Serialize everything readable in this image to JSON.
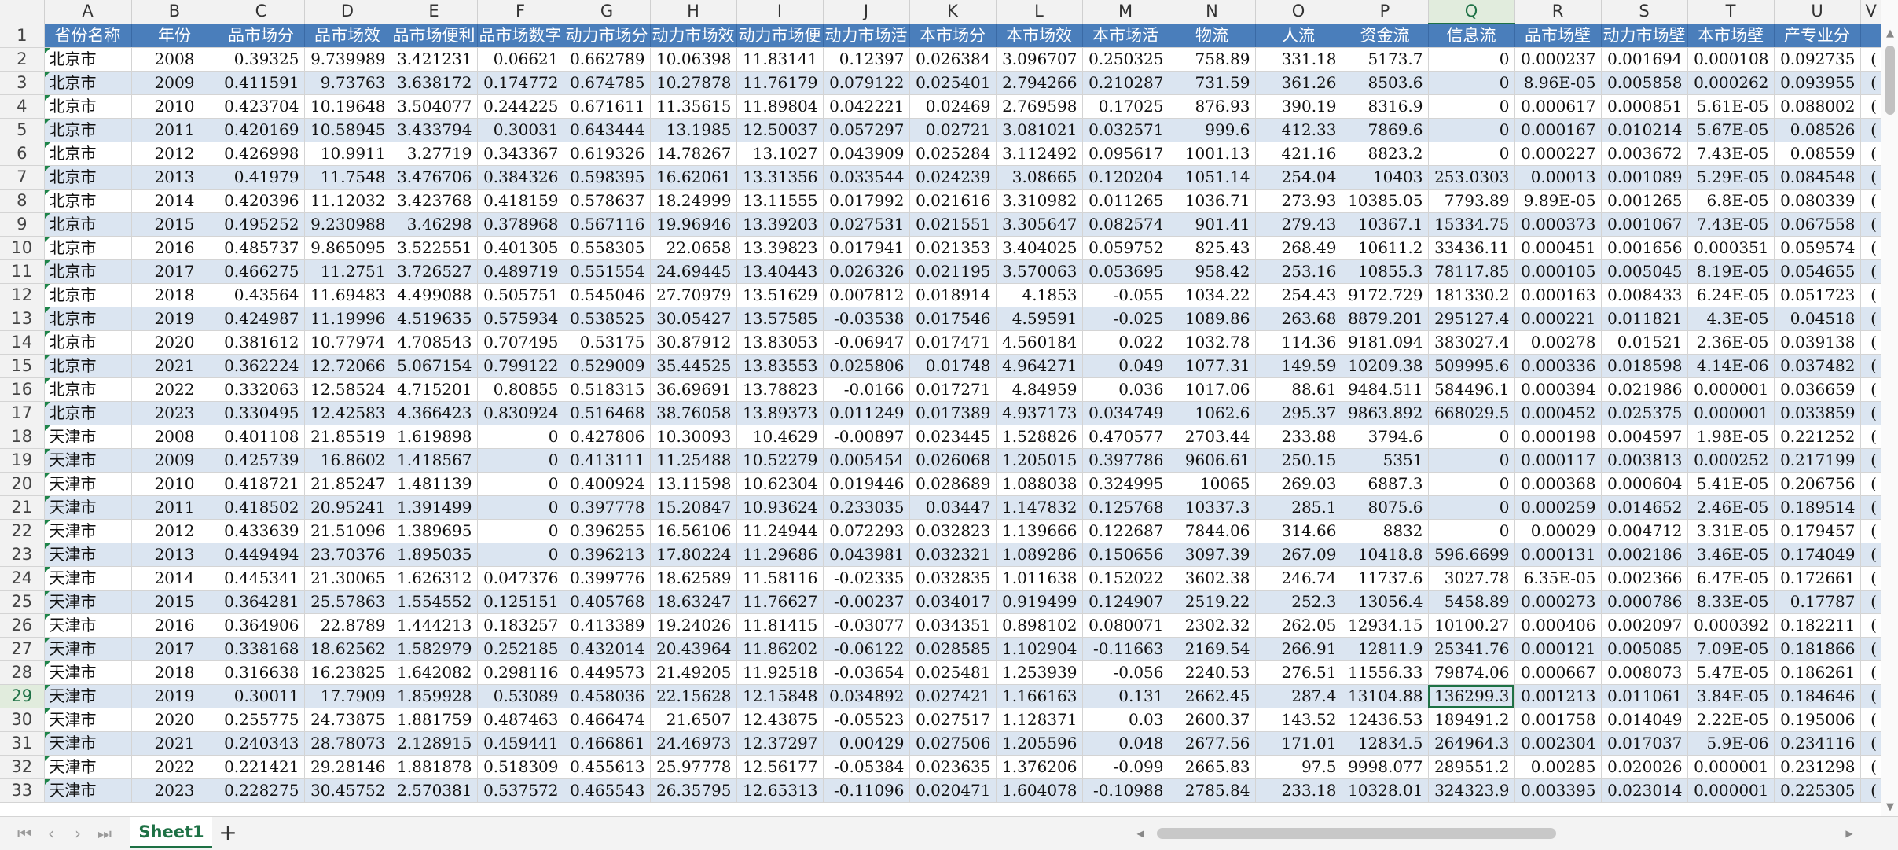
{
  "columns": [
    "A",
    "B",
    "C",
    "D",
    "E",
    "F",
    "G",
    "H",
    "I",
    "J",
    "K",
    "L",
    "M",
    "N",
    "O",
    "P",
    "Q",
    "R",
    "S",
    "T",
    "U",
    "V"
  ],
  "headers": [
    "省份名称",
    "年份",
    "品市场分",
    "品市场效",
    "品市场便利",
    "品市场数字",
    "动力市场分",
    "动力市场效",
    "动力市场便",
    "动力市场活",
    "本市场分",
    "本市场效",
    "本市场活",
    "物流",
    "人流",
    "资金流",
    "信息流",
    "品市场壁",
    "动力市场壁",
    "本市场壁",
    "产专业分",
    ""
  ],
  "sheet_tab": "Sheet1",
  "add_sheet": "+",
  "icons": {
    "first": "⏮",
    "prev": "‹",
    "next": "›",
    "last": "⏭",
    "scroll_up": "▲",
    "scroll_down": "▼",
    "scroll_left": "◀",
    "scroll_right": "▶"
  },
  "selected_cell": "Q29",
  "rows": [
    {
      "n": "2",
      "c": [
        "北京市",
        "2008",
        "0.39325",
        "9.739989",
        "3.421231",
        "0.06621",
        "0.662789",
        "10.06398",
        "11.83141",
        "0.12397",
        "0.026384",
        "3.096707",
        "0.250325",
        "758.89",
        "331.18",
        "5173.7",
        "0",
        "0.000237",
        "0.001694",
        "0.000108",
        "0.092735",
        "("
      ]
    },
    {
      "n": "3",
      "c": [
        "北京市",
        "2009",
        "0.411591",
        "9.73763",
        "3.638172",
        "0.174772",
        "0.674785",
        "10.27878",
        "11.76179",
        "0.079122",
        "0.025401",
        "2.794266",
        "0.210287",
        "731.59",
        "361.26",
        "8503.6",
        "0",
        "8.96E-05",
        "0.005858",
        "0.000262",
        "0.093955",
        "("
      ]
    },
    {
      "n": "4",
      "c": [
        "北京市",
        "2010",
        "0.423704",
        "10.19648",
        "3.504077",
        "0.244225",
        "0.671611",
        "11.35615",
        "11.89804",
        "0.042221",
        "0.02469",
        "2.769598",
        "0.17025",
        "876.93",
        "390.19",
        "8316.9",
        "0",
        "0.000617",
        "0.000851",
        "5.61E-05",
        "0.088002",
        "("
      ]
    },
    {
      "n": "5",
      "c": [
        "北京市",
        "2011",
        "0.420169",
        "10.58945",
        "3.433794",
        "0.30031",
        "0.643444",
        "13.1985",
        "12.50037",
        "0.057297",
        "0.02721",
        "3.081021",
        "0.032571",
        "999.6",
        "412.33",
        "7869.6",
        "0",
        "0.000167",
        "0.010214",
        "5.67E-05",
        "0.08526",
        "("
      ]
    },
    {
      "n": "6",
      "c": [
        "北京市",
        "2012",
        "0.426998",
        "10.9911",
        "3.27719",
        "0.343367",
        "0.619326",
        "14.78267",
        "13.1027",
        "0.043909",
        "0.025284",
        "3.112492",
        "0.095617",
        "1001.13",
        "421.16",
        "8823.2",
        "0",
        "0.000227",
        "0.003672",
        "7.43E-05",
        "0.08559",
        "("
      ]
    },
    {
      "n": "7",
      "c": [
        "北京市",
        "2013",
        "0.41979",
        "11.7548",
        "3.476706",
        "0.384326",
        "0.598395",
        "16.62061",
        "13.31356",
        "0.033544",
        "0.024239",
        "3.08665",
        "0.120204",
        "1051.14",
        "254.04",
        "10403",
        "253.0303",
        "0.00013",
        "0.001089",
        "5.29E-05",
        "0.084548",
        "("
      ]
    },
    {
      "n": "8",
      "c": [
        "北京市",
        "2014",
        "0.420396",
        "11.12032",
        "3.423768",
        "0.418159",
        "0.578637",
        "18.24999",
        "13.11555",
        "0.017992",
        "0.021616",
        "3.310982",
        "0.011265",
        "1036.71",
        "273.93",
        "10385.05",
        "7793.89",
        "9.89E-05",
        "0.001265",
        "6.8E-05",
        "0.080339",
        "("
      ]
    },
    {
      "n": "9",
      "c": [
        "北京市",
        "2015",
        "0.495252",
        "9.230988",
        "3.46298",
        "0.378968",
        "0.567116",
        "19.96946",
        "13.39203",
        "0.027531",
        "0.021551",
        "3.305647",
        "0.082574",
        "901.41",
        "279.43",
        "10367.1",
        "15334.75",
        "0.000373",
        "0.001067",
        "7.43E-05",
        "0.067558",
        "("
      ]
    },
    {
      "n": "10",
      "c": [
        "北京市",
        "2016",
        "0.485737",
        "9.865095",
        "3.522551",
        "0.401305",
        "0.558305",
        "22.0658",
        "13.39823",
        "0.017941",
        "0.021353",
        "3.404025",
        "0.059752",
        "825.43",
        "268.49",
        "10611.2",
        "33436.11",
        "0.000451",
        "0.001656",
        "0.000351",
        "0.059574",
        "("
      ]
    },
    {
      "n": "11",
      "c": [
        "北京市",
        "2017",
        "0.466275",
        "11.2751",
        "3.726527",
        "0.489719",
        "0.551554",
        "24.69445",
        "13.40443",
        "0.026326",
        "0.021195",
        "3.570063",
        "0.053695",
        "958.42",
        "253.16",
        "10855.3",
        "78117.85",
        "0.000105",
        "0.005045",
        "8.19E-05",
        "0.054655",
        "("
      ]
    },
    {
      "n": "12",
      "c": [
        "北京市",
        "2018",
        "0.43564",
        "11.69483",
        "4.499088",
        "0.505751",
        "0.545046",
        "27.70979",
        "13.51629",
        "0.007812",
        "0.018914",
        "4.1853",
        "-0.055",
        "1034.22",
        "254.43",
        "9172.729",
        "181330.2",
        "0.000163",
        "0.008433",
        "6.24E-05",
        "0.051723",
        "("
      ]
    },
    {
      "n": "13",
      "c": [
        "北京市",
        "2019",
        "0.424987",
        "11.19996",
        "4.519635",
        "0.575934",
        "0.538525",
        "30.05427",
        "13.57585",
        "-0.03538",
        "0.017546",
        "4.59591",
        "-0.025",
        "1089.86",
        "263.68",
        "8879.201",
        "295127.4",
        "0.000221",
        "0.011821",
        "4.3E-05",
        "0.04518",
        "("
      ]
    },
    {
      "n": "14",
      "c": [
        "北京市",
        "2020",
        "0.381612",
        "10.77974",
        "4.708543",
        "0.707495",
        "0.53175",
        "30.87912",
        "13.83053",
        "-0.06947",
        "0.017471",
        "4.560184",
        "0.022",
        "1032.78",
        "114.36",
        "9181.094",
        "383027.4",
        "0.00278",
        "0.01521",
        "2.36E-05",
        "0.039138",
        "("
      ]
    },
    {
      "n": "15",
      "c": [
        "北京市",
        "2021",
        "0.362224",
        "12.72066",
        "5.067154",
        "0.799122",
        "0.529009",
        "35.44525",
        "13.83553",
        "0.025806",
        "0.01748",
        "4.964271",
        "0.049",
        "1077.31",
        "149.59",
        "10209.38",
        "509995.6",
        "0.000336",
        "0.018598",
        "4.14E-06",
        "0.037482",
        "("
      ]
    },
    {
      "n": "16",
      "c": [
        "北京市",
        "2022",
        "0.332063",
        "12.58524",
        "4.715201",
        "0.80855",
        "0.518315",
        "36.69691",
        "13.78823",
        "-0.0166",
        "0.017271",
        "4.84959",
        "0.036",
        "1017.06",
        "88.61",
        "9484.511",
        "584496.1",
        "0.000394",
        "0.021986",
        "0.000001",
        "0.036659",
        "("
      ]
    },
    {
      "n": "17",
      "c": [
        "北京市",
        "2023",
        "0.330495",
        "12.42583",
        "4.366423",
        "0.830924",
        "0.516468",
        "38.76058",
        "13.89373",
        "0.011249",
        "0.017389",
        "4.937173",
        "0.034749",
        "1062.6",
        "295.37",
        "9863.892",
        "668029.5",
        "0.000452",
        "0.025375",
        "0.000001",
        "0.033859",
        "("
      ]
    },
    {
      "n": "18",
      "c": [
        "天津市",
        "2008",
        "0.401108",
        "21.85519",
        "1.619898",
        "0",
        "0.427806",
        "10.30093",
        "10.4629",
        "-0.00897",
        "0.023445",
        "1.528826",
        "0.470577",
        "2703.44",
        "233.88",
        "3794.6",
        "0",
        "0.000198",
        "0.004597",
        "1.98E-05",
        "0.221252",
        "("
      ]
    },
    {
      "n": "19",
      "c": [
        "天津市",
        "2009",
        "0.425739",
        "16.8602",
        "1.418567",
        "0",
        "0.413111",
        "11.25488",
        "10.52279",
        "0.005454",
        "0.026068",
        "1.205015",
        "0.397786",
        "9606.61",
        "250.15",
        "5351",
        "0",
        "0.000117",
        "0.003813",
        "0.000252",
        "0.217199",
        "("
      ]
    },
    {
      "n": "20",
      "c": [
        "天津市",
        "2010",
        "0.418721",
        "21.85247",
        "1.481139",
        "0",
        "0.400924",
        "13.11598",
        "10.62304",
        "0.019446",
        "0.028689",
        "1.088038",
        "0.324995",
        "10065",
        "269.03",
        "6887.3",
        "0",
        "0.000368",
        "0.000604",
        "5.41E-05",
        "0.206756",
        "("
      ]
    },
    {
      "n": "21",
      "c": [
        "天津市",
        "2011",
        "0.418502",
        "20.95241",
        "1.391499",
        "0",
        "0.397778",
        "15.20847",
        "10.93624",
        "0.233035",
        "0.03447",
        "1.147832",
        "0.125768",
        "10337.3",
        "285.1",
        "8075.6",
        "0",
        "0.000259",
        "0.014652",
        "2.46E-05",
        "0.189514",
        "("
      ]
    },
    {
      "n": "22",
      "c": [
        "天津市",
        "2012",
        "0.433639",
        "21.51096",
        "1.389695",
        "0",
        "0.396255",
        "16.56106",
        "11.24944",
        "0.072293",
        "0.032823",
        "1.139666",
        "0.122687",
        "7844.06",
        "314.66",
        "8832",
        "0",
        "0.00029",
        "0.004712",
        "3.31E-05",
        "0.179457",
        "("
      ]
    },
    {
      "n": "23",
      "c": [
        "天津市",
        "2013",
        "0.449494",
        "23.70376",
        "1.895035",
        "0",
        "0.396213",
        "17.80224",
        "11.29686",
        "0.043981",
        "0.032321",
        "1.089286",
        "0.150656",
        "3097.39",
        "267.09",
        "10418.8",
        "596.6699",
        "0.000131",
        "0.002186",
        "3.46E-05",
        "0.174049",
        "("
      ]
    },
    {
      "n": "24",
      "c": [
        "天津市",
        "2014",
        "0.445341",
        "21.30065",
        "1.626312",
        "0.047376",
        "0.399776",
        "18.62589",
        "11.58116",
        "-0.02335",
        "0.032835",
        "1.011638",
        "0.152022",
        "3602.38",
        "246.74",
        "11737.6",
        "3027.78",
        "6.35E-05",
        "0.002366",
        "6.47E-05",
        "0.172661",
        "("
      ]
    },
    {
      "n": "25",
      "c": [
        "天津市",
        "2015",
        "0.364281",
        "25.57863",
        "1.554552",
        "0.125151",
        "0.405768",
        "18.63247",
        "11.76627",
        "-0.00237",
        "0.034017",
        "0.919499",
        "0.124907",
        "2519.22",
        "252.3",
        "13056.4",
        "5458.89",
        "0.000273",
        "0.000786",
        "8.33E-05",
        "0.17787",
        "("
      ]
    },
    {
      "n": "26",
      "c": [
        "天津市",
        "2016",
        "0.364906",
        "22.8789",
        "1.444213",
        "0.183257",
        "0.413389",
        "19.24026",
        "11.81415",
        "-0.03077",
        "0.034351",
        "0.898102",
        "0.080071",
        "2302.32",
        "262.05",
        "12934.15",
        "10100.27",
        "0.000406",
        "0.002097",
        "0.000392",
        "0.182211",
        "("
      ]
    },
    {
      "n": "27",
      "c": [
        "天津市",
        "2017",
        "0.338168",
        "18.62562",
        "1.582979",
        "0.252185",
        "0.432014",
        "20.43964",
        "11.86202",
        "-0.06122",
        "0.028585",
        "1.102904",
        "-0.11663",
        "2169.54",
        "266.91",
        "12811.9",
        "25341.76",
        "0.000121",
        "0.005085",
        "7.09E-05",
        "0.181866",
        "("
      ]
    },
    {
      "n": "28",
      "c": [
        "天津市",
        "2018",
        "0.316638",
        "16.23825",
        "1.642082",
        "0.298116",
        "0.449573",
        "21.49205",
        "11.92518",
        "-0.03654",
        "0.025481",
        "1.253939",
        "-0.056",
        "2240.53",
        "276.51",
        "11556.33",
        "79874.06",
        "0.000667",
        "0.008073",
        "5.47E-05",
        "0.186261",
        "("
      ]
    },
    {
      "n": "29",
      "c": [
        "天津市",
        "2019",
        "0.30011",
        "17.7909",
        "1.859928",
        "0.53089",
        "0.458036",
        "22.15628",
        "12.15848",
        "0.034892",
        "0.027421",
        "1.166163",
        "0.131",
        "2662.45",
        "287.4",
        "13104.88",
        "136299.3",
        "0.001213",
        "0.011061",
        "3.84E-05",
        "0.184646",
        "("
      ]
    },
    {
      "n": "30",
      "c": [
        "天津市",
        "2020",
        "0.255775",
        "24.73875",
        "1.881759",
        "0.487463",
        "0.466474",
        "21.6507",
        "12.43875",
        "-0.05523",
        "0.027517",
        "1.128371",
        "0.03",
        "2600.37",
        "143.52",
        "12436.53",
        "189491.2",
        "0.001758",
        "0.014049",
        "2.22E-05",
        "0.195006",
        "("
      ]
    },
    {
      "n": "31",
      "c": [
        "天津市",
        "2021",
        "0.240343",
        "28.78073",
        "2.128915",
        "0.459441",
        "0.466861",
        "24.46973",
        "12.37297",
        "0.00429",
        "0.027506",
        "1.205596",
        "0.048",
        "2677.56",
        "171.01",
        "12834.5",
        "264964.3",
        "0.002304",
        "0.017037",
        "5.9E-06",
        "0.234116",
        "("
      ]
    },
    {
      "n": "32",
      "c": [
        "天津市",
        "2022",
        "0.221421",
        "29.28146",
        "1.881878",
        "0.518309",
        "0.455613",
        "25.97778",
        "12.56177",
        "-0.05384",
        "0.023635",
        "1.376206",
        "-0.099",
        "2665.83",
        "97.5",
        "9998.077",
        "289551.2",
        "0.00285",
        "0.020026",
        "0.000001",
        "0.231298",
        "("
      ]
    },
    {
      "n": "33",
      "c": [
        "天津市",
        "2023",
        "0.228275",
        "30.45752",
        "2.570381",
        "0.537572",
        "0.465543",
        "26.35795",
        "12.65313",
        "-0.11096",
        "0.020471",
        "1.604078",
        "-0.10988",
        "2785.84",
        "233.18",
        "10328.01",
        "324323.9",
        "0.003395",
        "0.023014",
        "0.000001",
        "0.225305",
        "("
      ]
    }
  ]
}
